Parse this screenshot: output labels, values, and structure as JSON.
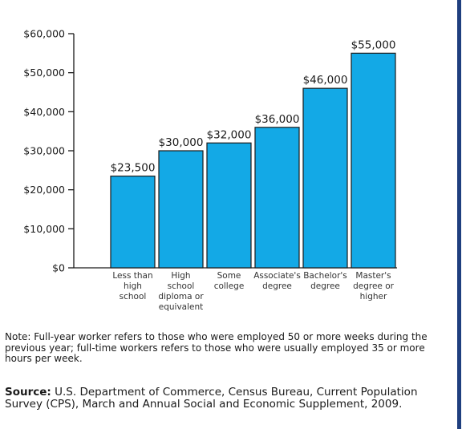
{
  "chart_data": {
    "type": "bar",
    "categories": [
      "Less than high school",
      "High school diploma or equivalent",
      "Some college",
      "Associate's degree",
      "Bachelor's degree",
      "Master's degree or higher"
    ],
    "category_lines": [
      [
        "Less than",
        "high",
        "school"
      ],
      [
        "High",
        "school",
        "diploma or",
        "equivalent"
      ],
      [
        "Some",
        "college"
      ],
      [
        "Associate's",
        "degree"
      ],
      [
        "Bachelor's",
        "degree"
      ],
      [
        "Master's",
        "degree or",
        "higher"
      ]
    ],
    "values": [
      23500,
      30000,
      32000,
      36000,
      46000,
      55000
    ],
    "value_labels": [
      "$23,500",
      "$30,000",
      "$32,000",
      "$36,000",
      "$46,000",
      "$55,000"
    ],
    "yticks": [
      0,
      10000,
      20000,
      30000,
      40000,
      50000,
      60000
    ],
    "ytick_labels": [
      "$0",
      "$10,000",
      "$20,000",
      "$30,000",
      "$40,000",
      "$50,000",
      "$60,000"
    ],
    "ylim": [
      0,
      60000
    ],
    "bar_color": "#13a9e6",
    "bar_edge_color": "#1a1a1a",
    "grid": false,
    "title": "",
    "xlabel": "",
    "ylabel": ""
  },
  "note": "Note: Full-year worker refers to those who were employed 50 or more weeks during the previous year; full-time workers refers to those who were usually employed 35 or more hours per week.",
  "source": {
    "label": "Source:",
    "text": " U.S. Department of Commerce, Census Bureau, Current Population Survey (CPS), March and Annual Social and Economic Supplement, 2009."
  },
  "colors": {
    "frame": "#1f3f7f"
  }
}
